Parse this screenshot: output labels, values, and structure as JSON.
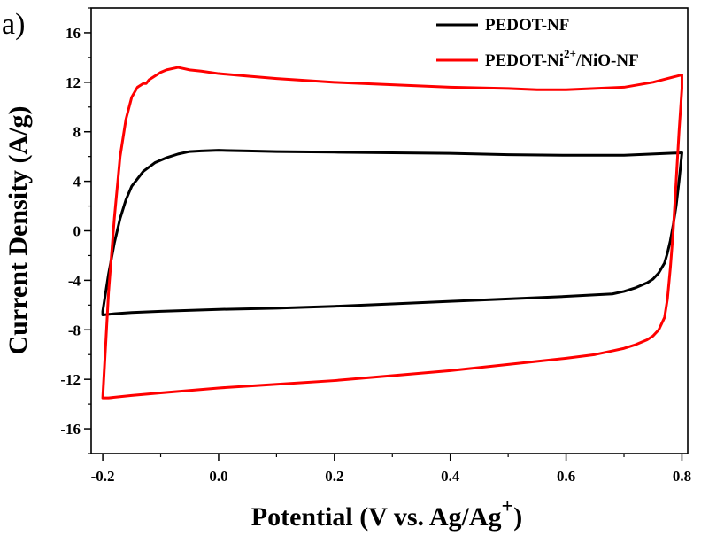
{
  "panel_label": "a)",
  "chart_data": {
    "type": "line",
    "xlabel": "Potential (V vs. Ag/Ag",
    "xlabel_sup": "+",
    "xlabel_close": ")",
    "ylabel": "Current Density (A/g)",
    "xlim": [
      -0.22,
      0.81
    ],
    "ylim": [
      -18,
      18
    ],
    "xticks": [
      -0.2,
      0.0,
      0.2,
      0.4,
      0.6,
      0.8
    ],
    "xtick_labels": [
      "-0.2",
      "0.0",
      "0.2",
      "0.4",
      "0.6",
      "0.8"
    ],
    "yticks": [
      -16,
      -12,
      -8,
      -4,
      0,
      4,
      8,
      12,
      16
    ],
    "ytick_labels": [
      "-16",
      "-12",
      "-8",
      "-4",
      "0",
      "4",
      "8",
      "12",
      "16"
    ],
    "grid": false,
    "legend_position": "top-right",
    "series": [
      {
        "name": "PEDOT-NF",
        "color": "#000000",
        "x": [
          -0.2,
          -0.19,
          -0.18,
          -0.17,
          -0.16,
          -0.15,
          -0.13,
          -0.11,
          -0.09,
          -0.07,
          -0.05,
          -0.03,
          0.0,
          0.05,
          0.1,
          0.2,
          0.3,
          0.4,
          0.5,
          0.6,
          0.7,
          0.8,
          0.795,
          0.79,
          0.785,
          0.78,
          0.775,
          0.77,
          0.76,
          0.75,
          0.74,
          0.72,
          0.7,
          0.68,
          0.6,
          0.5,
          0.4,
          0.3,
          0.2,
          0.1,
          0.0,
          -0.1,
          -0.15,
          -0.18,
          -0.2
        ],
        "y": [
          -6.5,
          -3.5,
          -1.0,
          1.0,
          2.5,
          3.6,
          4.8,
          5.5,
          5.9,
          6.2,
          6.4,
          6.45,
          6.5,
          6.45,
          6.4,
          6.35,
          6.3,
          6.25,
          6.15,
          6.1,
          6.1,
          6.3,
          4.0,
          2.0,
          0.5,
          -0.8,
          -1.8,
          -2.6,
          -3.4,
          -3.9,
          -4.2,
          -4.6,
          -4.9,
          -5.1,
          -5.3,
          -5.5,
          -5.7,
          -5.9,
          -6.1,
          -6.25,
          -6.35,
          -6.5,
          -6.6,
          -6.7,
          -6.8
        ]
      },
      {
        "name": "PEDOT-Ni",
        "name_sup": "2+",
        "name_rest": "/NiO-NF",
        "color": "#ff0000",
        "x": [
          -0.2,
          -0.19,
          -0.18,
          -0.17,
          -0.16,
          -0.15,
          -0.14,
          -0.13,
          -0.125,
          -0.12,
          -0.1,
          -0.09,
          -0.08,
          -0.07,
          -0.06,
          -0.05,
          -0.03,
          0.0,
          0.05,
          0.1,
          0.2,
          0.3,
          0.4,
          0.5,
          0.55,
          0.6,
          0.7,
          0.75,
          0.8,
          0.8,
          0.795,
          0.79,
          0.785,
          0.78,
          0.775,
          0.77,
          0.76,
          0.75,
          0.74,
          0.72,
          0.7,
          0.68,
          0.65,
          0.6,
          0.5,
          0.4,
          0.3,
          0.2,
          0.1,
          0.0,
          -0.05,
          -0.1,
          -0.15,
          -0.19,
          -0.2
        ],
        "y": [
          -13.5,
          -5.0,
          1.0,
          6.0,
          9.0,
          10.8,
          11.6,
          11.9,
          11.9,
          12.2,
          12.8,
          13.0,
          13.1,
          13.2,
          13.1,
          13.0,
          12.9,
          12.7,
          12.5,
          12.3,
          12.0,
          11.8,
          11.6,
          11.5,
          11.4,
          11.4,
          11.6,
          12.0,
          12.6,
          11.5,
          8.0,
          4.0,
          0.0,
          -3.0,
          -5.5,
          -7.0,
          -8.0,
          -8.5,
          -8.8,
          -9.2,
          -9.5,
          -9.7,
          -10.0,
          -10.3,
          -10.8,
          -11.3,
          -11.7,
          -12.1,
          -12.4,
          -12.7,
          -12.9,
          -13.1,
          -13.3,
          -13.5,
          -13.5
        ]
      }
    ]
  }
}
